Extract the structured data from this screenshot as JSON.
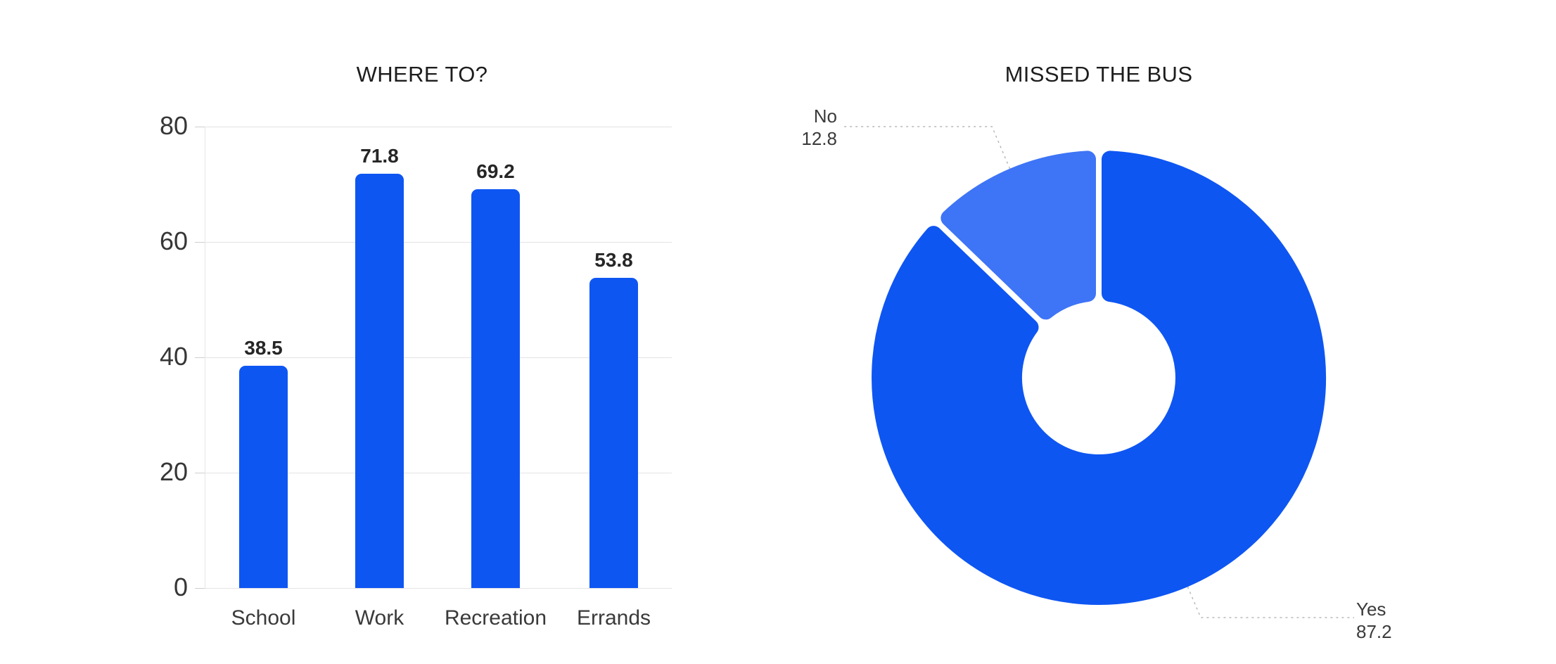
{
  "page": {
    "background": "#ffffff"
  },
  "chart_data": [
    {
      "type": "bar",
      "title": "WHERE TO?",
      "categories": [
        "School",
        "Work",
        "Recreation",
        "Errands"
      ],
      "values": [
        38.5,
        71.8,
        69.2,
        53.8
      ],
      "value_labels": [
        "38.5",
        "71.8",
        "69.2",
        "53.8"
      ],
      "ylim": [
        0,
        80
      ],
      "yticks": [
        0,
        20,
        40,
        60,
        80
      ],
      "grid": true,
      "legend": "none",
      "bar_color": "#0e56f2",
      "gridline_color": "#e4e4e4",
      "value_label_color": "#262626",
      "tick_label_color": "#363636",
      "category_label_color": "#3a3a3a"
    },
    {
      "type": "pie",
      "title": "MISSED THE BUS",
      "donut": true,
      "slices": [
        {
          "label": "Yes",
          "value": 87.2,
          "display": "87.2",
          "color": "#0e56f2"
        },
        {
          "label": "No",
          "value": 12.8,
          "display": "12.8",
          "color": "#3e74f6"
        }
      ],
      "start_angle_deg": 0,
      "clockwise": true,
      "leader_line_color": "#b8b8b8",
      "callout_text_color": "#3b3b3b"
    }
  ]
}
